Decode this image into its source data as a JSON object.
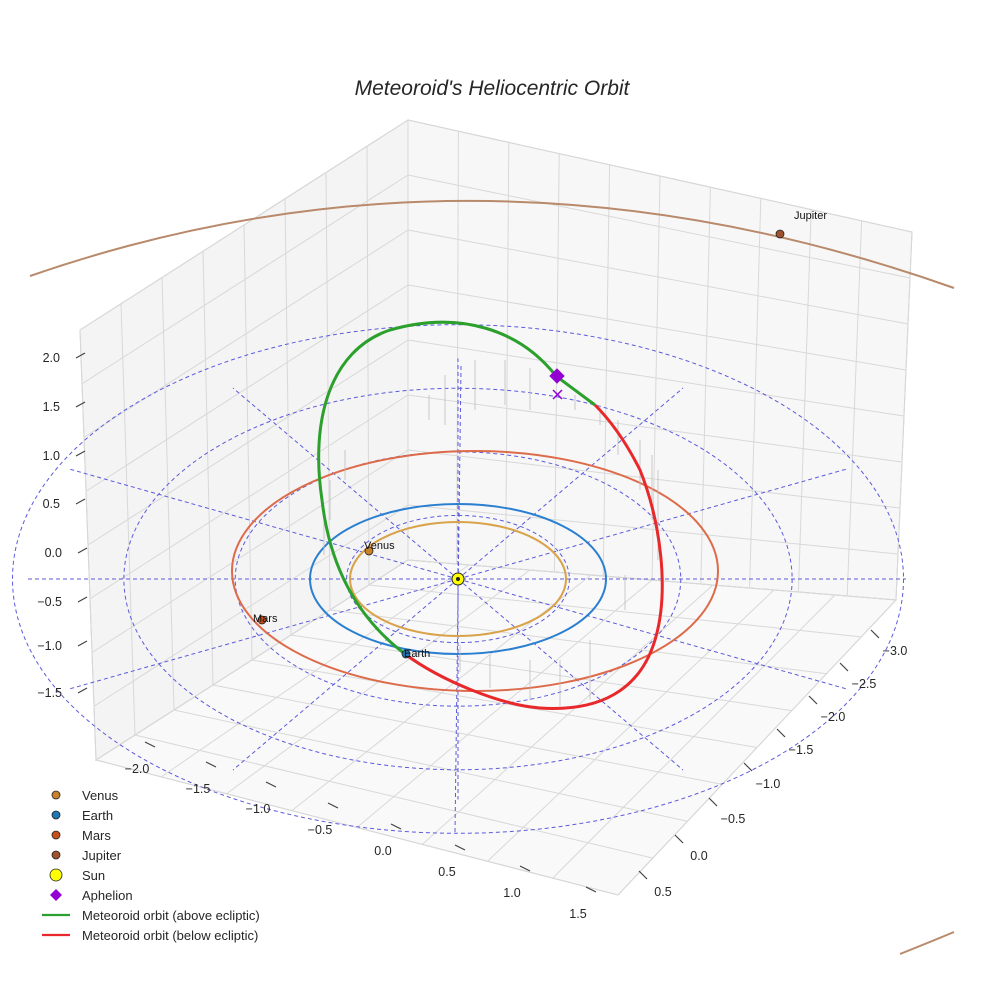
{
  "chart_data": {
    "type": "3d-orbit",
    "title": "Meteoroid's Heliocentric Orbit",
    "axes": {
      "x": {
        "ticks": [
          "−2.0",
          "−1.5",
          "−1.0",
          "−0.5",
          "0.0",
          "0.5",
          "1.0",
          "1.5"
        ]
      },
      "y": {
        "ticks": [
          "−3.0",
          "−2.5",
          "−2.0",
          "−1.5",
          "−1.0",
          "−0.5",
          "0.0",
          "0.5"
        ]
      },
      "z": {
        "ticks": [
          "2.0",
          "1.5",
          "1.0",
          "0.5",
          "0.0",
          "−0.5",
          "−1.0",
          "−1.5"
        ]
      }
    },
    "reference_circles_au": [
      0.5,
      1.0,
      1.5,
      2.0
    ],
    "planets": [
      {
        "name": "Venus",
        "orbit_radius_au": 0.72,
        "color": "#c8822a",
        "orbit_color": "#d8a34a",
        "label": "Venus"
      },
      {
        "name": "Earth",
        "orbit_radius_au": 1.0,
        "color": "#1f77b4",
        "orbit_color": "#2b7fd0",
        "label": "Earth"
      },
      {
        "name": "Mars",
        "orbit_radius_au": 1.52,
        "color": "#c84f1a",
        "orbit_color": "#dd6b4a",
        "label": "Mars"
      },
      {
        "name": "Jupiter",
        "orbit_radius_au": 5.2,
        "color": "#a0522d",
        "orbit_color": "#b8896a",
        "label": "Jupiter"
      }
    ],
    "sun": {
      "name": "Sun",
      "color": "#ffff00"
    },
    "aphelion": {
      "name": "Aphelion",
      "color": "#9400d3"
    },
    "meteoroid_orbit": {
      "above_label": "Meteoroid orbit (above ecliptic)",
      "below_label": "Meteoroid orbit (below ecliptic)",
      "above_color": "#2ca02c",
      "below_color": "#e8282b"
    }
  },
  "legend": {
    "items": [
      {
        "label": "Venus",
        "kind": "dot",
        "color": "#c8822a"
      },
      {
        "label": "Earth",
        "kind": "dot",
        "color": "#1f77b4"
      },
      {
        "label": "Mars",
        "kind": "dot",
        "color": "#c84f1a"
      },
      {
        "label": "Jupiter",
        "kind": "dot",
        "color": "#a0522d"
      },
      {
        "label": "Sun",
        "kind": "sun",
        "color": "#ffff00"
      },
      {
        "label": "Aphelion",
        "kind": "diamond",
        "color": "#9400d3"
      },
      {
        "label": "Meteoroid orbit (above ecliptic)",
        "kind": "line",
        "color": "#2ca02c"
      },
      {
        "label": "Meteoroid orbit (below ecliptic)",
        "kind": "line",
        "color": "#e8282b"
      }
    ]
  }
}
